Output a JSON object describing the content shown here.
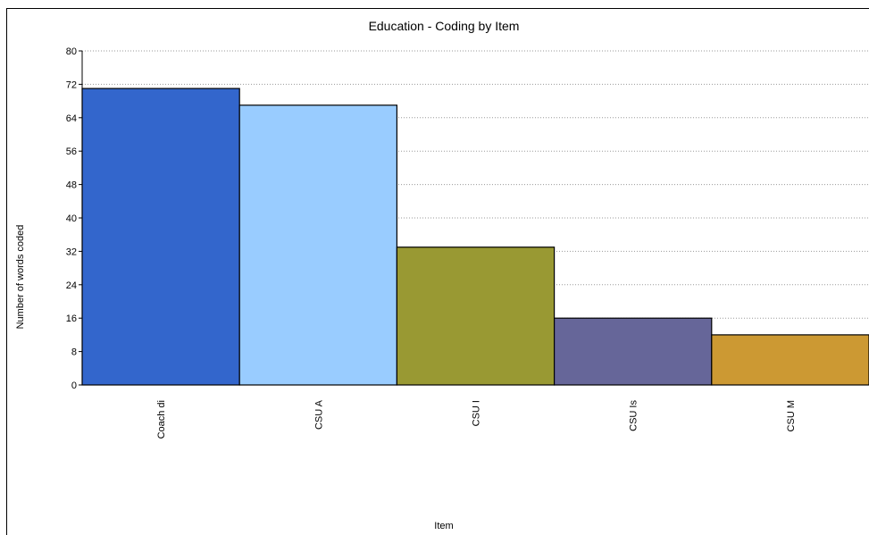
{
  "chart_data": {
    "type": "bar",
    "title": "Education - Coding by Item",
    "xlabel": "Item",
    "ylabel": "Number of words coded",
    "categories": [
      "Coach di",
      "CSU A",
      "CSU I",
      "CSU Is",
      "CSU M"
    ],
    "values": [
      71,
      67,
      33,
      16,
      12
    ],
    "colors": [
      "#3366cc",
      "#99ccff",
      "#999933",
      "#666699",
      "#cc9933"
    ],
    "ylim": [
      0,
      80
    ],
    "yticks": [
      0,
      8,
      16,
      24,
      32,
      40,
      48,
      56,
      64,
      72,
      80
    ],
    "grid": true,
    "legend": "none"
  }
}
